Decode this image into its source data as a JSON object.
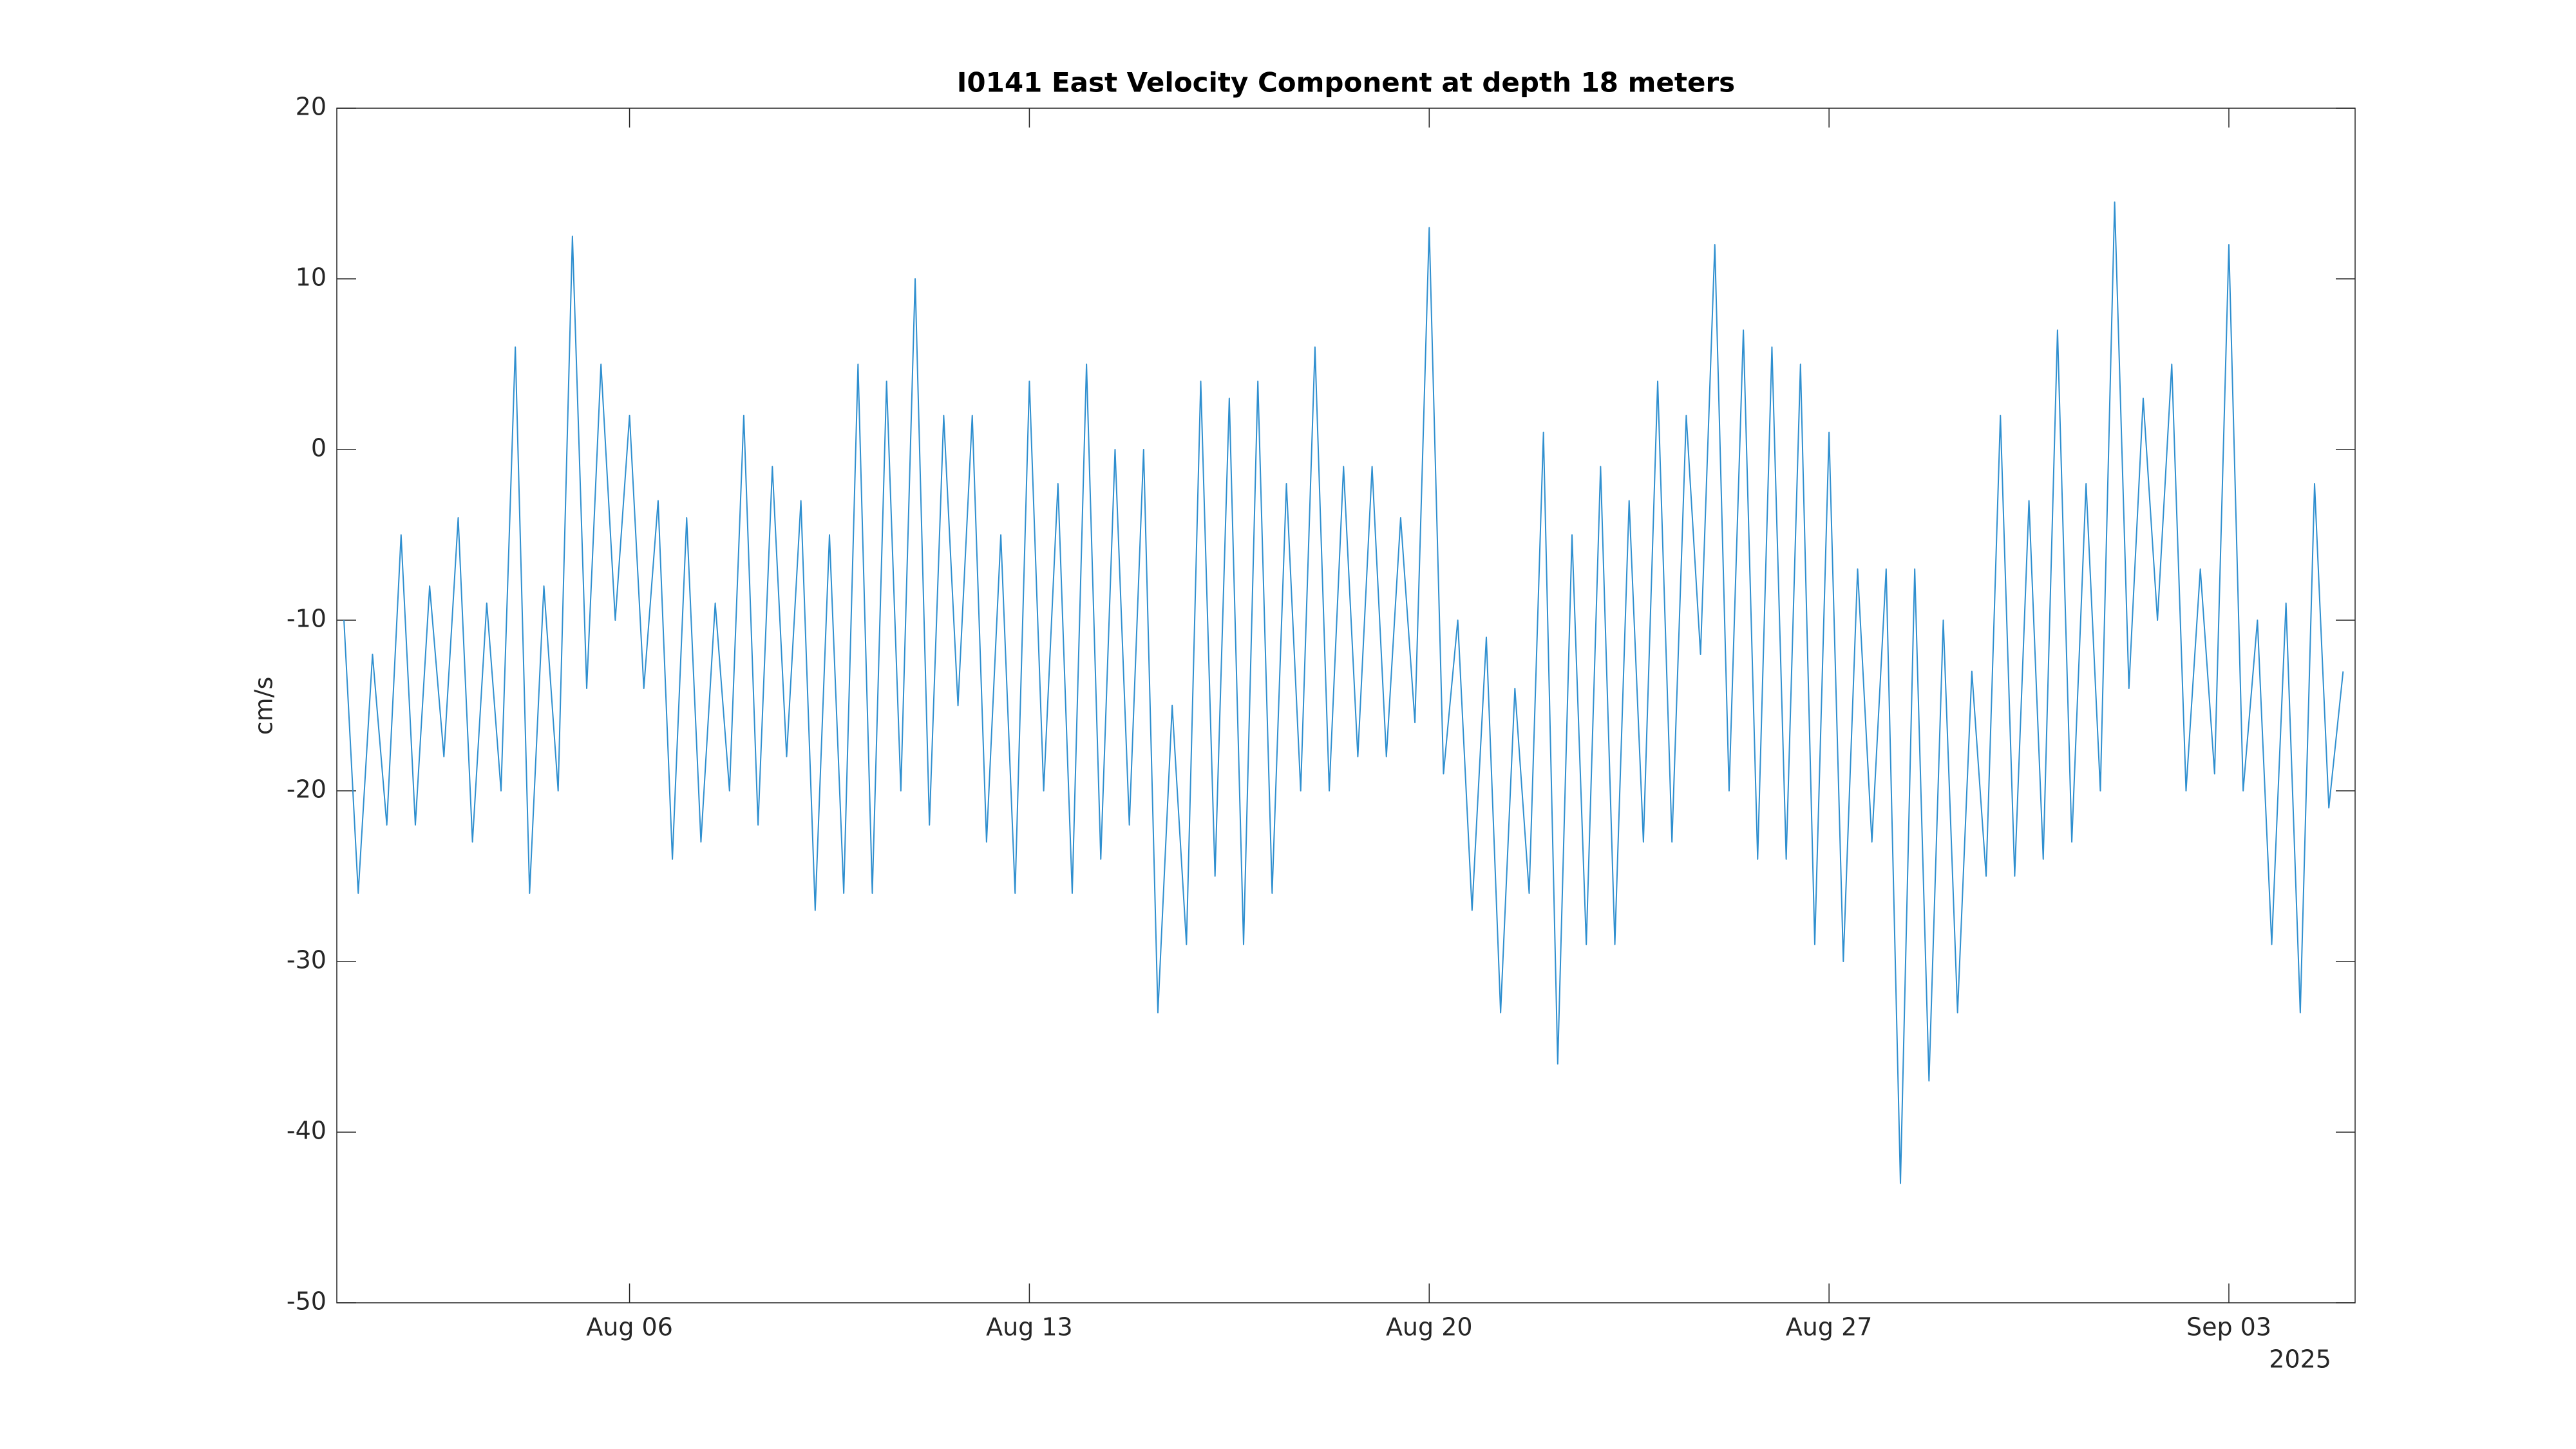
{
  "chart_data": {
    "type": "line",
    "title": "I0141 East Velocity Component at depth 18 meters",
    "ylabel": "cm/s",
    "x_secondary_label": "2025",
    "x": [
      1,
      1.25,
      1.5,
      1.75,
      2,
      2.25,
      2.5,
      2.75,
      3,
      3.25,
      3.5,
      3.75,
      4,
      4.25,
      4.5,
      4.75,
      5,
      5.25,
      5.5,
      5.75,
      6,
      6.25,
      6.5,
      6.75,
      7,
      7.25,
      7.5,
      7.75,
      8,
      8.25,
      8.5,
      8.75,
      9,
      9.25,
      9.5,
      9.75,
      10,
      10.25,
      10.5,
      10.75,
      11,
      11.25,
      11.5,
      11.75,
      12,
      12.25,
      12.5,
      12.75,
      13,
      13.25,
      13.5,
      13.75,
      14,
      14.25,
      14.5,
      14.75,
      15,
      15.25,
      15.5,
      15.75,
      16,
      16.25,
      16.5,
      16.75,
      17,
      17.25,
      17.5,
      17.75,
      18,
      18.25,
      18.5,
      18.75,
      19,
      19.25,
      19.5,
      19.75,
      20,
      20.25,
      20.5,
      20.75,
      21,
      21.25,
      21.5,
      21.75,
      22,
      22.25,
      22.5,
      22.75,
      23,
      23.25,
      23.5,
      23.75,
      24,
      24.25,
      24.5,
      24.75,
      25,
      25.25,
      25.5,
      25.75,
      26,
      26.25,
      26.5,
      26.75,
      27,
      27.25,
      27.5,
      27.75,
      28,
      28.25,
      28.5,
      28.75,
      29,
      29.25,
      29.5,
      29.75,
      30,
      30.25,
      30.5,
      30.75,
      31,
      31.25,
      31.5,
      31.75,
      32,
      32.25,
      32.5,
      32.75,
      33,
      33.25,
      33.5,
      33.75,
      34,
      34.25,
      34.5,
      34.75,
      35,
      35.25,
      35.5,
      35.75,
      36
    ],
    "series": [
      {
        "color": "#2f8fcf",
        "values": [
          -10,
          -26,
          -12,
          -22,
          -5,
          -22,
          -8,
          -18,
          -4,
          -23,
          -9,
          -20,
          6,
          -26,
          -8,
          -20,
          12.5,
          -14,
          5,
          -10,
          2,
          -14,
          -3,
          -24,
          -4,
          -23,
          -9,
          -20,
          2,
          -22,
          -1,
          -18,
          -3,
          -27,
          -5,
          -26,
          5,
          -26,
          4,
          -20,
          10,
          -22,
          2,
          -15,
          2,
          -23,
          -5,
          -26,
          4,
          -20,
          -2,
          -26,
          5,
          -24,
          0,
          -22,
          0,
          -33,
          -15,
          -29,
          4,
          -25,
          3,
          -29,
          4,
          -26,
          -2,
          -20,
          6,
          -20,
          -1,
          -18,
          -1,
          -18,
          -4,
          -16,
          13,
          -19,
          -10,
          -27,
          -11,
          -33,
          -14,
          -26,
          1,
          -36,
          -5,
          -29,
          -1,
          -29,
          -3,
          -23,
          4,
          -23,
          2,
          -12,
          12,
          -20,
          7,
          -24,
          6,
          -24,
          5,
          -29,
          1,
          -30,
          -7,
          -23,
          -7,
          -43,
          -7,
          -37,
          -10,
          -33,
          -13,
          -25,
          2,
          -25,
          -3,
          -24,
          7,
          -23,
          -2,
          -20,
          14.5,
          -14,
          3,
          -10,
          5,
          -20,
          -7,
          -19,
          12,
          -20,
          -10,
          -29,
          -9,
          -33,
          -2,
          -21,
          -13
        ]
      }
    ],
    "xlim": [
      0.875,
      36.21
    ],
    "xticks": [
      {
        "value": 6,
        "label": "Aug 06"
      },
      {
        "value": 13,
        "label": "Aug 13"
      },
      {
        "value": 20,
        "label": "Aug 20"
      },
      {
        "value": 27,
        "label": "Aug 27"
      },
      {
        "value": 34,
        "label": "Sep 03"
      }
    ],
    "ylim": [
      -50,
      20
    ],
    "yticks": [
      -50,
      -40,
      -30,
      -20,
      -10,
      0,
      10,
      20
    ],
    "grid": false
  }
}
